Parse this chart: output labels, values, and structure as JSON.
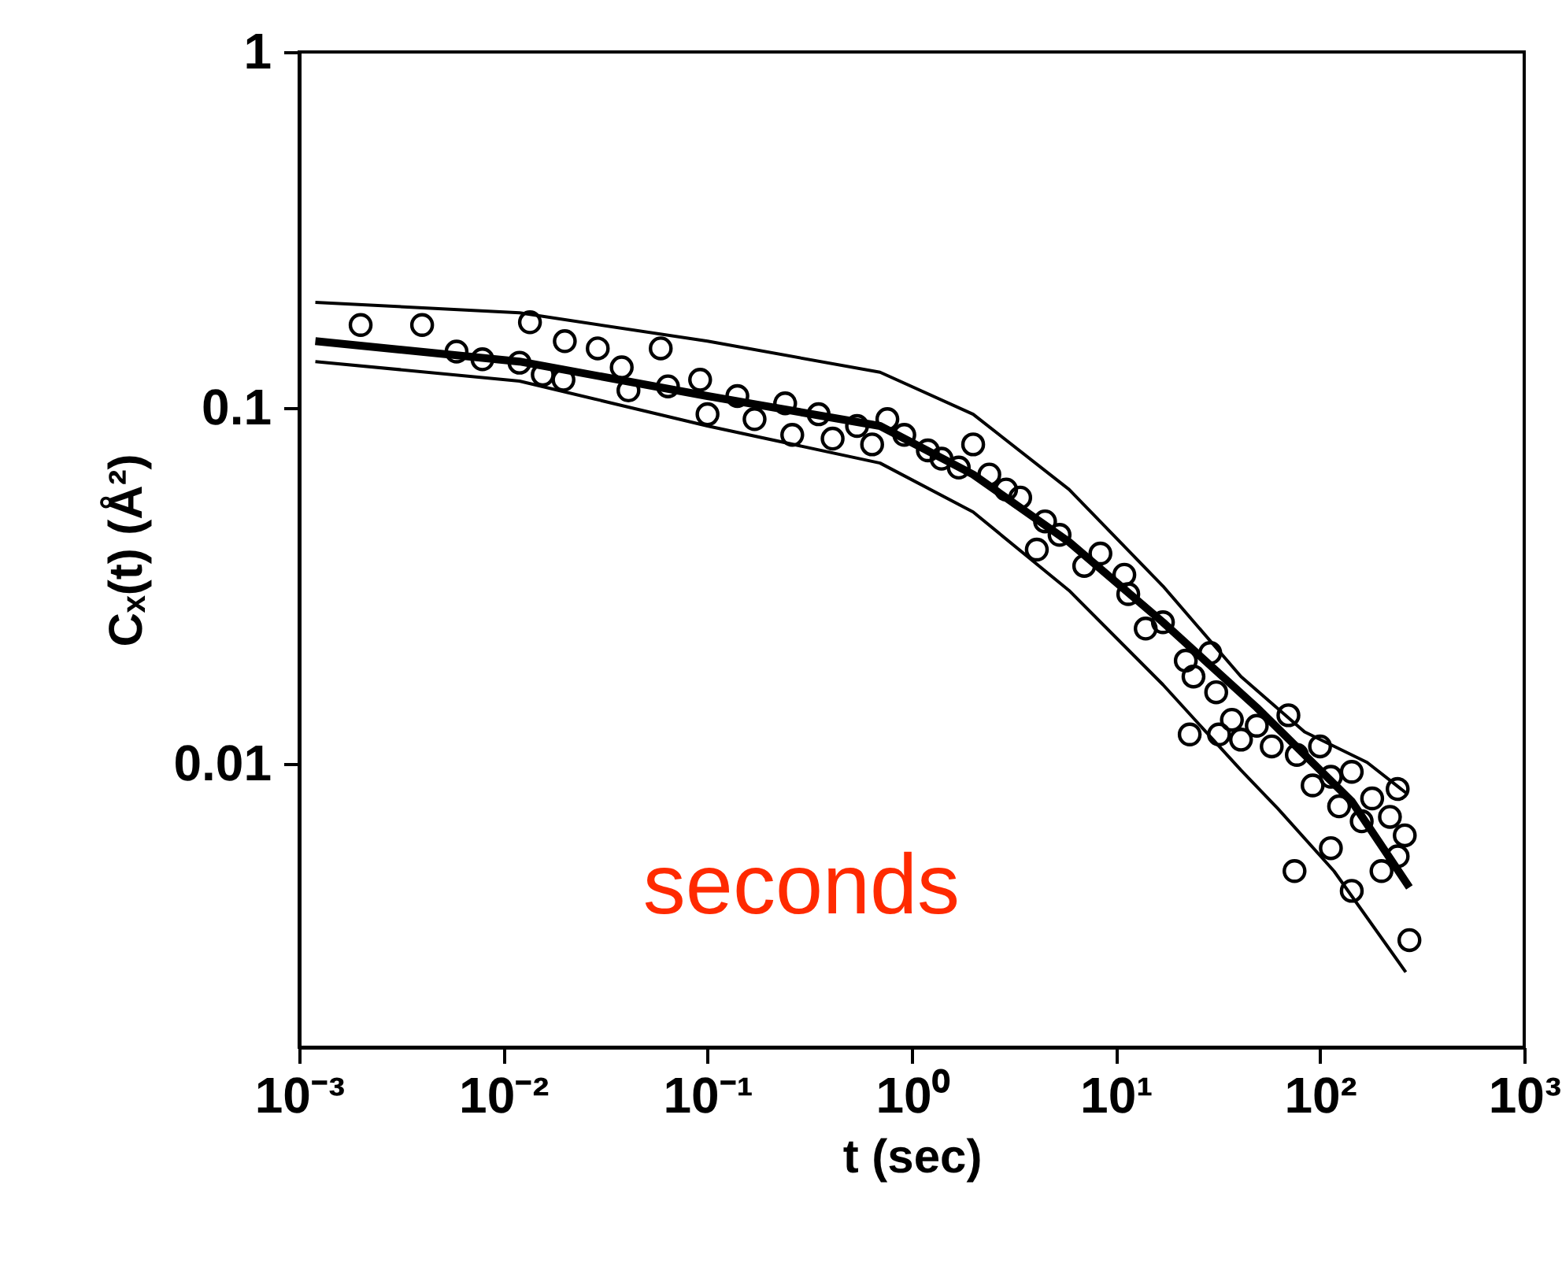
{
  "chart_data": {
    "type": "scatter",
    "xlabel": "t (sec)",
    "ylabel": "Cₓ(t) (Å²)",
    "log": "xy",
    "xlim": [
      0.001,
      1000
    ],
    "ylim": [
      0.0016,
      1
    ],
    "xticks": [
      {
        "value": 0.001,
        "label": "10⁻³"
      },
      {
        "value": 0.01,
        "label": "10⁻²"
      },
      {
        "value": 0.1,
        "label": "10⁻¹"
      },
      {
        "value": 1,
        "label": "10⁰"
      },
      {
        "value": 10,
        "label": "10¹"
      },
      {
        "value": 100,
        "label": "10²"
      },
      {
        "value": 1000,
        "label": "10³"
      }
    ],
    "yticks": [
      0.01,
      0.1,
      1
    ],
    "grid": false,
    "annotations": [
      "seconds"
    ],
    "series": [
      {
        "color": "#000000",
        "marker": "circle",
        "x": [
          0.002,
          0.004,
          0.0059,
          0.0079,
          0.012,
          0.0135,
          0.0156,
          0.02,
          0.0197,
          0.029,
          0.038,
          0.041,
          0.059,
          0.064,
          0.092,
          0.1,
          0.14,
          0.17,
          0.24,
          0.26,
          0.35,
          0.41,
          0.54,
          0.64,
          0.76,
          0.92,
          1.2,
          1.4,
          1.7,
          2.0,
          2.4,
          2.9,
          3.4,
          4.1,
          4.5,
          5.3,
          7.0,
          8.4,
          11,
          11.5,
          14,
          17,
          22,
          24,
          29,
          31,
          23,
          32,
          37,
          41,
          49,
          58,
          70,
          77,
          100,
          92,
          113,
          124,
          143,
          160,
          180,
          220,
          240,
          260,
          240,
          75,
          113,
          143,
          274,
          200
        ],
        "values": [
          0.171,
          0.171,
          0.144,
          0.137,
          0.134,
          0.174,
          0.124,
          0.154,
          0.12,
          0.147,
          0.13,
          0.112,
          0.147,
          0.115,
          0.12,
          0.096,
          0.108,
          0.093,
          0.103,
          0.084,
          0.096,
          0.082,
          0.089,
          0.079,
          0.093,
          0.084,
          0.076,
          0.072,
          0.068,
          0.079,
          0.065,
          0.059,
          0.056,
          0.04,
          0.048,
          0.044,
          0.036,
          0.039,
          0.034,
          0.03,
          0.024,
          0.025,
          0.0195,
          0.0176,
          0.0205,
          0.0159,
          0.0121,
          0.0121,
          0.0133,
          0.0117,
          0.0128,
          0.0112,
          0.0137,
          0.0106,
          0.0112,
          0.0087,
          0.0092,
          0.0076,
          0.0095,
          0.0069,
          0.008,
          0.0071,
          0.0085,
          0.0063,
          0.0055,
          0.005,
          0.0058,
          0.0044,
          0.0032,
          0.005
        ]
      },
      {
        "type": "line",
        "color": "#000000",
        "line_style": "solid",
        "marker": "none",
        "x": [
          0.0012,
          0.012,
          0.1,
          0.7,
          2.0,
          5.9,
          17,
          49,
          143,
          274
        ],
        "values": [
          0.154,
          0.135,
          0.108,
          0.089,
          0.065,
          0.042,
          0.025,
          0.0144,
          0.00785,
          0.0045
        ]
      },
      {
        "type": "line",
        "color": "#000000",
        "line_style": "solid",
        "marker": "none",
        "x": [
          0.0012,
          0.012,
          0.1,
          0.7,
          2.0,
          5.9,
          17,
          41,
          84,
          170,
          263
        ],
        "values": [
          0.198,
          0.185,
          0.154,
          0.126,
          0.096,
          0.059,
          0.0316,
          0.0176,
          0.0123,
          0.0101,
          0.0083
        ]
      },
      {
        "type": "line",
        "color": "#000000",
        "line_style": "solid",
        "marker": "none",
        "x": [
          0.0012,
          0.012,
          0.1,
          0.7,
          2.0,
          5.9,
          17,
          41,
          62,
          117,
          263
        ],
        "values": [
          0.135,
          0.119,
          0.089,
          0.07,
          0.051,
          0.0307,
          0.0167,
          0.0096,
          0.0075,
          0.005,
          0.0026
        ]
      }
    ]
  }
}
